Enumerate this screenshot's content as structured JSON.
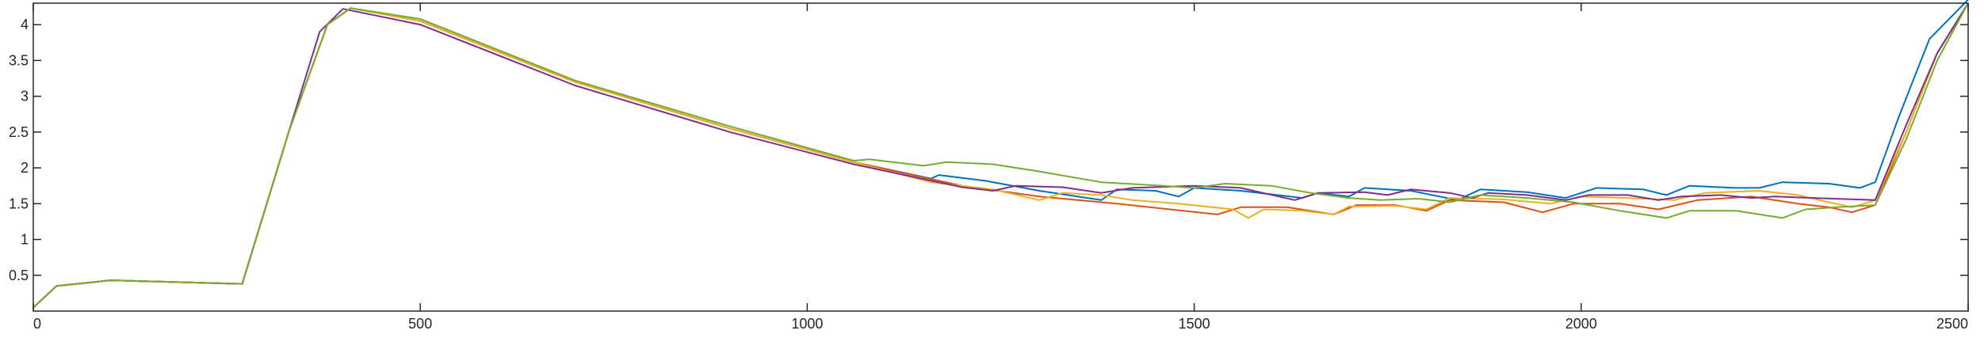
{
  "chart_data": {
    "type": "line",
    "title": "",
    "xlabel": "",
    "ylabel": "",
    "xlim": [
      0,
      2500
    ],
    "ylim": [
      0,
      4.3
    ],
    "xticks": [
      0,
      500,
      1000,
      1500,
      2000,
      2500
    ],
    "xtick_labels": [
      "0",
      "500",
      "1000",
      "1500",
      "2000",
      "2500"
    ],
    "yticks": [
      0.5,
      1,
      1.5,
      2,
      2.5,
      3,
      3.5,
      4
    ],
    "ytick_labels": [
      "0.5",
      "1",
      "1.5",
      "2",
      "2.5",
      "3",
      "3.5",
      "4"
    ],
    "grid": false,
    "legend": "none",
    "series": [
      {
        "color": "#0072BD",
        "points": [
          [
            0,
            0.05
          ],
          [
            30,
            0.35
          ],
          [
            100,
            0.43
          ],
          [
            270,
            0.38
          ],
          [
            330,
            2.5
          ],
          [
            380,
            4.0
          ],
          [
            410,
            4.23
          ],
          [
            500,
            4.05
          ],
          [
            700,
            3.2
          ],
          [
            900,
            2.55
          ],
          [
            1060,
            2.08
          ],
          [
            1160,
            1.85
          ],
          [
            1170,
            1.9
          ],
          [
            1230,
            1.82
          ],
          [
            1300,
            1.68
          ],
          [
            1380,
            1.55
          ],
          [
            1400,
            1.7
          ],
          [
            1450,
            1.68
          ],
          [
            1480,
            1.6
          ],
          [
            1500,
            1.72
          ],
          [
            1560,
            1.68
          ],
          [
            1640,
            1.58
          ],
          [
            1660,
            1.65
          ],
          [
            1700,
            1.6
          ],
          [
            1720,
            1.72
          ],
          [
            1780,
            1.68
          ],
          [
            1840,
            1.55
          ],
          [
            1870,
            1.7
          ],
          [
            1930,
            1.66
          ],
          [
            1980,
            1.58
          ],
          [
            2020,
            1.72
          ],
          [
            2080,
            1.7
          ],
          [
            2110,
            1.62
          ],
          [
            2140,
            1.75
          ],
          [
            2200,
            1.72
          ],
          [
            2230,
            1.72
          ],
          [
            2260,
            1.8
          ],
          [
            2320,
            1.78
          ],
          [
            2360,
            1.72
          ],
          [
            2380,
            1.8
          ],
          [
            2410,
            2.7
          ],
          [
            2450,
            3.8
          ],
          [
            2500,
            4.35
          ]
        ]
      },
      {
        "color": "#D95319",
        "points": [
          [
            0,
            0.05
          ],
          [
            30,
            0.35
          ],
          [
            100,
            0.43
          ],
          [
            270,
            0.38
          ],
          [
            330,
            2.5
          ],
          [
            380,
            4.0
          ],
          [
            410,
            4.23
          ],
          [
            500,
            4.05
          ],
          [
            700,
            3.2
          ],
          [
            900,
            2.55
          ],
          [
            1060,
            2.08
          ],
          [
            1200,
            1.75
          ],
          [
            1300,
            1.6
          ],
          [
            1400,
            1.5
          ],
          [
            1530,
            1.35
          ],
          [
            1560,
            1.45
          ],
          [
            1620,
            1.45
          ],
          [
            1680,
            1.35
          ],
          [
            1710,
            1.48
          ],
          [
            1760,
            1.48
          ],
          [
            1800,
            1.4
          ],
          [
            1830,
            1.55
          ],
          [
            1900,
            1.52
          ],
          [
            1950,
            1.38
          ],
          [
            1990,
            1.5
          ],
          [
            2050,
            1.5
          ],
          [
            2100,
            1.42
          ],
          [
            2150,
            1.55
          ],
          [
            2220,
            1.6
          ],
          [
            2280,
            1.5
          ],
          [
            2320,
            1.45
          ],
          [
            2350,
            1.38
          ],
          [
            2380,
            1.48
          ],
          [
            2420,
            2.5
          ],
          [
            2460,
            3.6
          ],
          [
            2500,
            4.3
          ]
        ]
      },
      {
        "color": "#EDB120",
        "points": [
          [
            0,
            0.05
          ],
          [
            30,
            0.35
          ],
          [
            100,
            0.43
          ],
          [
            270,
            0.38
          ],
          [
            330,
            2.5
          ],
          [
            380,
            4.0
          ],
          [
            410,
            4.23
          ],
          [
            500,
            4.05
          ],
          [
            700,
            3.2
          ],
          [
            900,
            2.55
          ],
          [
            1060,
            2.08
          ],
          [
            1160,
            1.8
          ],
          [
            1240,
            1.7
          ],
          [
            1300,
            1.55
          ],
          [
            1330,
            1.65
          ],
          [
            1380,
            1.62
          ],
          [
            1420,
            1.55
          ],
          [
            1480,
            1.5
          ],
          [
            1550,
            1.42
          ],
          [
            1570,
            1.3
          ],
          [
            1590,
            1.42
          ],
          [
            1640,
            1.4
          ],
          [
            1680,
            1.35
          ],
          [
            1700,
            1.46
          ],
          [
            1760,
            1.47
          ],
          [
            1800,
            1.42
          ],
          [
            1830,
            1.58
          ],
          [
            1900,
            1.56
          ],
          [
            1960,
            1.5
          ],
          [
            2000,
            1.6
          ],
          [
            2060,
            1.58
          ],
          [
            2120,
            1.55
          ],
          [
            2160,
            1.65
          ],
          [
            2230,
            1.68
          ],
          [
            2280,
            1.62
          ],
          [
            2320,
            1.52
          ],
          [
            2350,
            1.45
          ],
          [
            2380,
            1.55
          ],
          [
            2420,
            2.5
          ],
          [
            2460,
            3.6
          ],
          [
            2500,
            4.3
          ]
        ]
      },
      {
        "color": "#7E2F8E",
        "points": [
          [
            0,
            0.05
          ],
          [
            30,
            0.35
          ],
          [
            100,
            0.43
          ],
          [
            270,
            0.38
          ],
          [
            330,
            2.5
          ],
          [
            370,
            3.9
          ],
          [
            400,
            4.22
          ],
          [
            500,
            4.0
          ],
          [
            700,
            3.15
          ],
          [
            900,
            2.5
          ],
          [
            1060,
            2.05
          ],
          [
            1200,
            1.73
          ],
          [
            1240,
            1.68
          ],
          [
            1270,
            1.75
          ],
          [
            1330,
            1.73
          ],
          [
            1380,
            1.65
          ],
          [
            1420,
            1.72
          ],
          [
            1500,
            1.75
          ],
          [
            1560,
            1.72
          ],
          [
            1630,
            1.55
          ],
          [
            1660,
            1.65
          ],
          [
            1720,
            1.66
          ],
          [
            1750,
            1.62
          ],
          [
            1780,
            1.7
          ],
          [
            1830,
            1.65
          ],
          [
            1860,
            1.58
          ],
          [
            1880,
            1.65
          ],
          [
            1930,
            1.62
          ],
          [
            1980,
            1.55
          ],
          [
            2010,
            1.62
          ],
          [
            2060,
            1.62
          ],
          [
            2100,
            1.55
          ],
          [
            2130,
            1.6
          ],
          [
            2180,
            1.62
          ],
          [
            2220,
            1.58
          ],
          [
            2250,
            1.6
          ],
          [
            2300,
            1.58
          ],
          [
            2380,
            1.55
          ],
          [
            2420,
            2.6
          ],
          [
            2460,
            3.6
          ],
          [
            2500,
            4.3
          ]
        ]
      },
      {
        "color": "#77AC30",
        "points": [
          [
            0,
            0.05
          ],
          [
            30,
            0.35
          ],
          [
            100,
            0.43
          ],
          [
            270,
            0.38
          ],
          [
            330,
            2.5
          ],
          [
            380,
            4.0
          ],
          [
            410,
            4.23
          ],
          [
            500,
            4.08
          ],
          [
            700,
            3.22
          ],
          [
            900,
            2.58
          ],
          [
            1060,
            2.1
          ],
          [
            1080,
            2.12
          ],
          [
            1150,
            2.03
          ],
          [
            1180,
            2.08
          ],
          [
            1240,
            2.05
          ],
          [
            1300,
            1.95
          ],
          [
            1380,
            1.8
          ],
          [
            1460,
            1.75
          ],
          [
            1500,
            1.72
          ],
          [
            1540,
            1.78
          ],
          [
            1600,
            1.75
          ],
          [
            1650,
            1.65
          ],
          [
            1700,
            1.58
          ],
          [
            1740,
            1.55
          ],
          [
            1790,
            1.57
          ],
          [
            1830,
            1.52
          ],
          [
            1870,
            1.62
          ],
          [
            1930,
            1.58
          ],
          [
            1990,
            1.52
          ],
          [
            2050,
            1.4
          ],
          [
            2110,
            1.3
          ],
          [
            2140,
            1.4
          ],
          [
            2200,
            1.4
          ],
          [
            2260,
            1.3
          ],
          [
            2290,
            1.42
          ],
          [
            2330,
            1.45
          ],
          [
            2380,
            1.48
          ],
          [
            2420,
            2.4
          ],
          [
            2460,
            3.5
          ],
          [
            2500,
            4.3
          ]
        ]
      }
    ]
  }
}
